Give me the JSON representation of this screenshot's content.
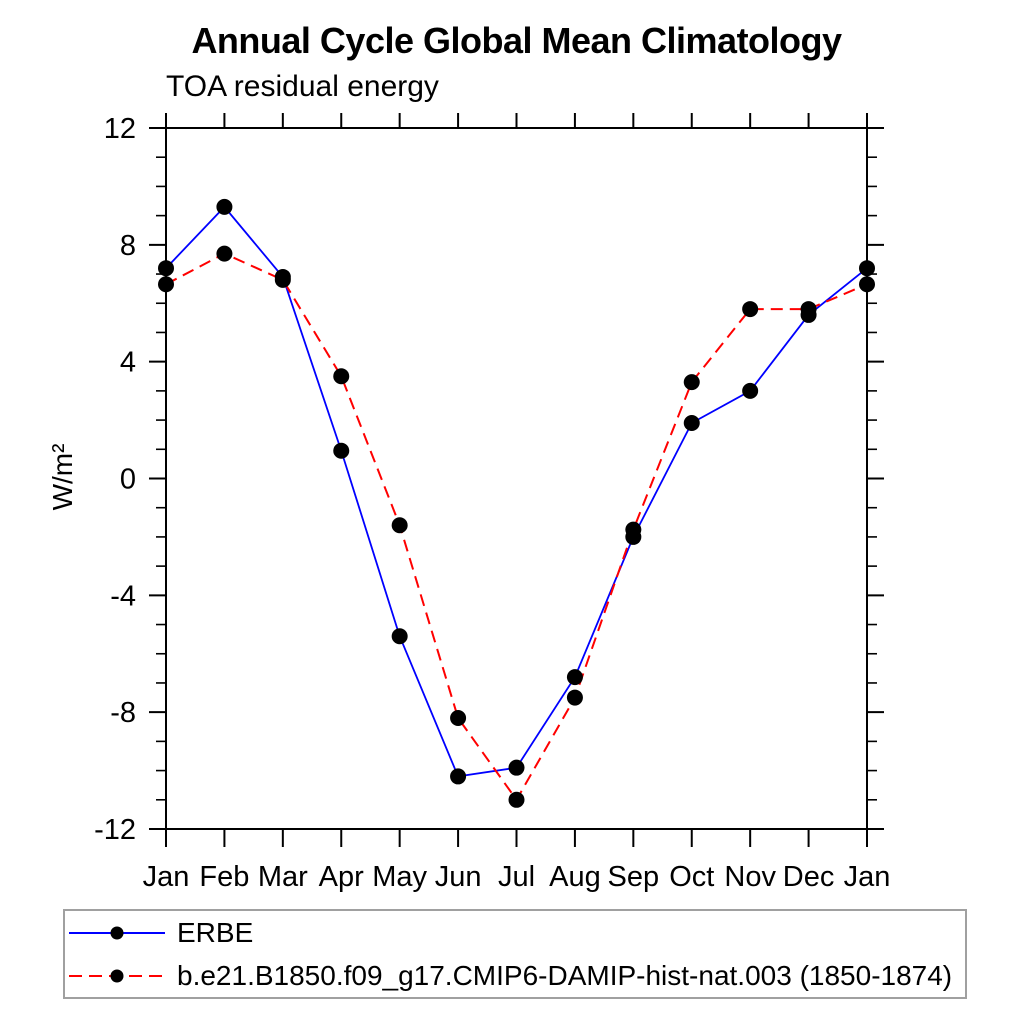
{
  "title": "Annual Cycle Global Mean Climatology",
  "subtitle": "TOA residual energy",
  "y_axis_label": "W/m²",
  "colors": {
    "background": "#ffffff",
    "axis": "#000000",
    "marker": "#000000",
    "erbe_line": "#0000ff",
    "model_line": "#ff0000",
    "legend_border": "#a0a0a0"
  },
  "chart_data": {
    "type": "line",
    "categories": [
      "Jan",
      "Feb",
      "Mar",
      "Apr",
      "May",
      "Jun",
      "Jul",
      "Aug",
      "Sep",
      "Oct",
      "Nov",
      "Dec",
      "Jan"
    ],
    "series": [
      {
        "name": "ERBE",
        "color": "#0000ff",
        "line_style": "solid",
        "marker": "filled-circle",
        "marker_color": "#000000",
        "values": [
          7.2,
          9.3,
          6.9,
          0.95,
          -5.4,
          -10.2,
          -9.9,
          -6.8,
          -2.0,
          1.9,
          3.0,
          5.6,
          7.2
        ]
      },
      {
        "name": "b.e21.B1850.f09_g17.CMIP6-DAMIP-hist-nat.003 (1850-1874)",
        "color": "#ff0000",
        "line_style": "dashed",
        "marker": "filled-circle",
        "marker_color": "#000000",
        "values": [
          6.65,
          7.7,
          6.8,
          3.5,
          -1.6,
          -8.2,
          -11.0,
          -7.5,
          -1.75,
          3.3,
          5.8,
          5.8,
          6.65
        ]
      }
    ],
    "title": "Annual Cycle Global Mean Climatology",
    "subtitle": "TOA residual energy",
    "xlabel": "",
    "ylabel": "W/m²",
    "ylim": [
      -12,
      12
    ],
    "ytick_major": [
      12,
      8,
      4,
      0,
      -4,
      -8,
      -12
    ],
    "ytick_minor_step": 1,
    "grid": false,
    "legend_position": "bottom-left-outside"
  }
}
